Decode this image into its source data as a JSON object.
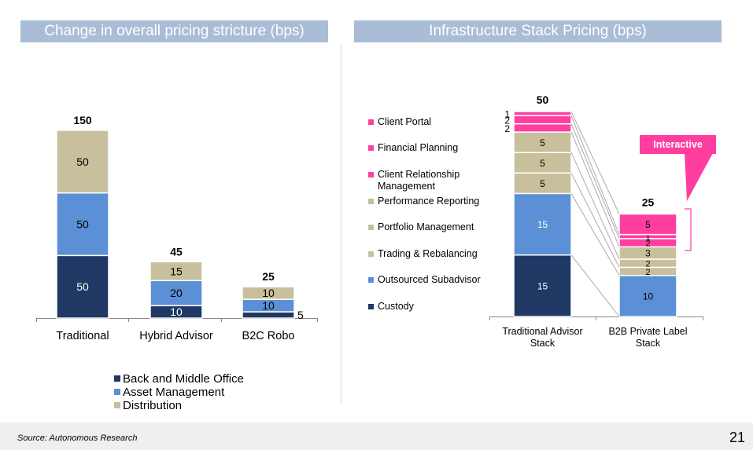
{
  "headers": {
    "left": "Change in overall pricing stricture (bps)",
    "right": "Infrastructure Stack Pricing (bps)"
  },
  "chart_data": [
    {
      "type": "bar",
      "stacked": true,
      "categories": [
        "Traditional",
        "Hybrid Advisor",
        "B2C Robo"
      ],
      "series": [
        {
          "name": "Back and Middle Office",
          "values": [
            50,
            10,
            5
          ],
          "color": "#1f3864"
        },
        {
          "name": "Asset Management",
          "values": [
            50,
            20,
            10
          ],
          "color": "#5b8fd6"
        },
        {
          "name": "Distribution",
          "values": [
            50,
            15,
            10
          ],
          "color": "#c8bf9c"
        }
      ],
      "totals": [
        150,
        45,
        25
      ],
      "title": "Change in overall pricing stricture (bps)",
      "ylim": [
        0,
        150
      ],
      "legend": [
        "Back and Middle Office",
        "Asset Management",
        "Distribution"
      ],
      "legend_position": "bottom"
    },
    {
      "type": "bar",
      "stacked": true,
      "categories": [
        "Traditional Advisor Stack",
        "B2B Private Label Stack"
      ],
      "series": [
        {
          "name": "Custody",
          "values": [
            15,
            0
          ],
          "color": "#1f3864"
        },
        {
          "name": "Outsourced Subadvisor",
          "values": [
            15,
            10
          ],
          "color": "#5b8fd6"
        },
        {
          "name": "Trading & Rebalancing",
          "values": [
            5,
            2
          ],
          "color": "#c8bf9c"
        },
        {
          "name": "Portfolio Management",
          "values": [
            5,
            2
          ],
          "color": "#c8bf9c"
        },
        {
          "name": "Performance Reporting",
          "values": [
            5,
            3
          ],
          "color": "#c8bf9c"
        },
        {
          "name": "Client Relationship Management",
          "values": [
            2,
            2
          ],
          "color": "#ff3ea0"
        },
        {
          "name": "Financial Planning",
          "values": [
            2,
            1
          ],
          "color": "#ff3ea0"
        },
        {
          "name": "Client Portal",
          "values": [
            1,
            5
          ],
          "color": "#ff3ea0"
        }
      ],
      "totals": [
        50,
        25
      ],
      "title": "Infrastructure Stack Pricing (bps)",
      "ylim": [
        0,
        50
      ],
      "legend": [
        "Client Portal",
        "Financial Planning",
        "Client Relationship Management",
        "Performance Reporting",
        "Portfolio Management",
        "Trading & Rebalancing",
        "Outsourced Subadvisor",
        "Custody"
      ],
      "legend_position": "left",
      "annotation": "Interactive"
    }
  ],
  "left_legend": [
    {
      "label": "Back and Middle Office",
      "color": "#1f3864"
    },
    {
      "label": "Asset Management",
      "color": "#5b8fd6"
    },
    {
      "label": "Distribution",
      "color": "#c8bf9c"
    }
  ],
  "right_legend": [
    {
      "label": "Client Portal",
      "color": "#ff3ea0"
    },
    {
      "label": "Financial Planning",
      "color": "#ff3ea0"
    },
    {
      "label": "Client Relationship Management",
      "color": "#ff3ea0"
    },
    {
      "label": "Performance Reporting",
      "color": "#c8bf9c"
    },
    {
      "label": "Portfolio Management",
      "color": "#c8bf9c"
    },
    {
      "label": "Trading & Rebalancing",
      "color": "#c8bf9c"
    },
    {
      "label": "Outsourced Subadvisor",
      "color": "#5b8fd6"
    },
    {
      "label": "Custody",
      "color": "#1f3864"
    }
  ],
  "callout": "Interactive",
  "footer": {
    "source": "Source: Autonomous Research",
    "page_number": "21"
  }
}
